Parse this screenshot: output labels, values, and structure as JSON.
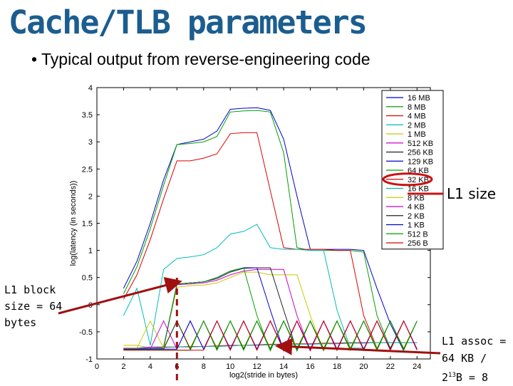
{
  "title": "Cache/TLB parameters",
  "subtitle": "• Typical output from reverse-engineering code",
  "annotations": {
    "l1_size": "L1 size",
    "l1_block_1": "L1 block",
    "l1_block_2": "size = 64",
    "l1_block_3": "bytes",
    "l1_assoc_1": "L1 assoc =",
    "l1_assoc_2": "64 KB /",
    "l1_assoc_3a": "2",
    "l1_assoc_3b": "13",
    "l1_assoc_3c": "B = 8"
  },
  "colors": {
    "title": "#1c5d8f",
    "arrow": "#a01010",
    "highlight": "#cc1111"
  },
  "chart_data": {
    "type": "line",
    "xlabel": "log2(stride in bytes)",
    "ylabel": "log(latency (in seconds))",
    "xlim": [
      0,
      25
    ],
    "ylim": [
      -1,
      4
    ],
    "xticks": [
      0,
      2,
      4,
      6,
      8,
      10,
      12,
      14,
      16,
      18,
      20,
      22,
      24
    ],
    "yticks": [
      -1,
      -0.5,
      0,
      0.5,
      1,
      1.5,
      2,
      2.5,
      3,
      3.5,
      4
    ],
    "legend_position": "top-right",
    "highlighted_legend_entry": "32 KB",
    "series": [
      {
        "name": "16 MB",
        "color": "#0000cc",
        "x": [
          2,
          3,
          4,
          5,
          6,
          7,
          8,
          9,
          10,
          11,
          12,
          13,
          14,
          15,
          16,
          17,
          18,
          19,
          20,
          21,
          22,
          23
        ],
        "values": [
          0.3,
          0.8,
          1.5,
          2.3,
          2.95,
          3.0,
          3.05,
          3.2,
          3.6,
          3.62,
          3.63,
          3.58,
          3.05,
          2.0,
          1.02,
          1.02,
          1.02,
          1.02,
          1.0,
          0.3,
          -0.35,
          -0.85
        ]
      },
      {
        "name": "8 MB",
        "color": "#00a000",
        "x": [
          2,
          3,
          4,
          5,
          6,
          7,
          8,
          9,
          10,
          11,
          12,
          13,
          14,
          15,
          16,
          17,
          18,
          19,
          20,
          21,
          22,
          23
        ],
        "values": [
          0.2,
          0.7,
          1.4,
          2.2,
          2.95,
          2.97,
          3.0,
          3.1,
          3.55,
          3.57,
          3.58,
          3.55,
          2.8,
          1.05,
          1.0,
          1.0,
          1.0,
          1.0,
          0.97,
          -0.2,
          -0.8,
          -0.3
        ]
      },
      {
        "name": "4 MB",
        "color": "#dd0000",
        "x": [
          2,
          3,
          4,
          5,
          6,
          7,
          8,
          9,
          10,
          11,
          12,
          13,
          14,
          15,
          16,
          17,
          18,
          19,
          20,
          21
        ],
        "values": [
          0.1,
          0.55,
          1.2,
          1.95,
          2.65,
          2.65,
          2.7,
          2.78,
          3.15,
          3.17,
          3.17,
          2.1,
          1.05,
          1.02,
          1.02,
          1.02,
          1.0,
          1.0,
          -0.2,
          -0.8
        ]
      },
      {
        "name": "2 MB",
        "color": "#00bbbb",
        "x": [
          2,
          3,
          4,
          5,
          6,
          7,
          8,
          9,
          10,
          11,
          12,
          13,
          14,
          15,
          16,
          17,
          18,
          19,
          20
        ],
        "values": [
          -0.2,
          0.3,
          -0.75,
          0.65,
          0.85,
          0.88,
          0.92,
          1.05,
          1.3,
          1.35,
          1.48,
          1.05,
          1.02,
          1.02,
          1.0,
          1.0,
          -0.1,
          -0.8,
          -0.8
        ]
      },
      {
        "name": "1 MB",
        "color": "#c8c800",
        "x": [
          2,
          3,
          4,
          5,
          6,
          7,
          8,
          9,
          10,
          11,
          12,
          13,
          14,
          15,
          16,
          17,
          18,
          19
        ],
        "values": [
          -0.75,
          -0.75,
          -0.8,
          -0.78,
          0.32,
          0.35,
          0.36,
          0.4,
          0.5,
          0.6,
          0.6,
          0.55,
          0.55,
          0.55,
          -0.2,
          -0.85,
          -0.3,
          -0.85
        ]
      },
      {
        "name": "512 KB",
        "color": "#cc00cc",
        "x": [
          2,
          3,
          4,
          5,
          6,
          7,
          8,
          9,
          10,
          11,
          12,
          13,
          14,
          15,
          16,
          17,
          18
        ],
        "values": [
          -0.8,
          -0.8,
          -0.78,
          -0.78,
          0.37,
          0.38,
          0.4,
          0.45,
          0.55,
          0.62,
          0.65,
          0.65,
          0.65,
          -0.2,
          -0.85,
          -0.3,
          -0.85
        ]
      },
      {
        "name": "256 KB",
        "color": "#222222",
        "x": [
          2,
          3,
          4,
          5,
          6,
          7,
          8,
          9,
          10,
          11,
          12,
          13,
          14,
          15,
          16,
          17
        ],
        "values": [
          -0.82,
          -0.82,
          -0.8,
          -0.8,
          0.38,
          0.4,
          0.42,
          0.48,
          0.6,
          0.67,
          0.68,
          0.68,
          -0.1,
          -0.85,
          -0.3,
          -0.85
        ]
      },
      {
        "name": "129 KB",
        "color": "#0000cc",
        "x": [
          2,
          3,
          4,
          5,
          6,
          7,
          8,
          9,
          10,
          11,
          12,
          13,
          14,
          15,
          16
        ],
        "values": [
          -0.82,
          -0.82,
          -0.8,
          -0.8,
          0.38,
          0.4,
          0.42,
          0.5,
          0.62,
          0.68,
          0.68,
          -0.1,
          -0.85,
          -0.3,
          -0.85
        ]
      },
      {
        "name": "64 KB",
        "color": "#00a000",
        "x": [
          2,
          3,
          4,
          5,
          6,
          7,
          8,
          9,
          10,
          11,
          12,
          13,
          14,
          15
        ],
        "values": [
          -0.82,
          -0.82,
          -0.8,
          -0.8,
          0.38,
          0.4,
          0.42,
          0.5,
          0.62,
          0.68,
          -0.2,
          -0.85,
          -0.3,
          -0.85
        ]
      },
      {
        "name": "32 KB",
        "color": "#dd0000",
        "x": [
          2,
          3,
          4,
          5,
          6,
          7,
          8,
          9,
          10,
          11,
          12,
          13,
          14,
          15,
          16,
          17,
          18,
          19,
          20,
          21,
          22,
          23,
          24
        ],
        "values": [
          -0.8,
          -0.8,
          -0.8,
          -0.78,
          -0.78,
          -0.77,
          -0.77,
          -0.76,
          -0.75,
          -0.75,
          -0.74,
          -0.73,
          -0.73,
          -0.72,
          -0.72,
          -0.71,
          -0.71,
          -0.7,
          -0.7,
          -0.7,
          -0.7,
          -0.7,
          -0.7
        ]
      },
      {
        "name": "16 KB",
        "color": "#00bbbb",
        "x": [
          2,
          3,
          4,
          5,
          6,
          7,
          8,
          9,
          10,
          11,
          12,
          13,
          14,
          15,
          16,
          17,
          18,
          19,
          20,
          21,
          22,
          23,
          24
        ],
        "values": [
          -0.8,
          -0.8,
          -0.8,
          -0.79,
          -0.78,
          -0.78,
          -0.77,
          -0.77,
          -0.76,
          -0.75,
          -0.75,
          -0.74,
          -0.74,
          -0.73,
          -0.73,
          -0.72,
          -0.72,
          -0.71,
          -0.71,
          -0.7,
          -0.7,
          -0.7,
          -0.7
        ]
      },
      {
        "name": "8 KB",
        "color": "#c8c800",
        "x": [
          2,
          3,
          4,
          5,
          6,
          7,
          8,
          9,
          10,
          11,
          12,
          13,
          14,
          15,
          16,
          17,
          18,
          19,
          20,
          21,
          22,
          23,
          24
        ],
        "values": [
          -0.8,
          -0.8,
          -0.3,
          -0.8,
          -0.3,
          -0.8,
          -0.3,
          -0.8,
          -0.3,
          -0.8,
          -0.3,
          -0.8,
          -0.3,
          -0.8,
          -0.3,
          -0.8,
          -0.3,
          -0.8,
          -0.3,
          -0.8,
          -0.3,
          -0.8,
          -0.3
        ]
      },
      {
        "name": "4 KB",
        "color": "#cc00cc",
        "x": [
          2,
          3,
          4,
          5,
          6,
          7,
          8,
          9,
          10,
          11,
          12,
          13,
          14,
          15,
          16,
          17,
          18,
          19,
          20,
          21,
          22,
          23,
          24
        ],
        "values": [
          -0.82,
          -0.82,
          -0.82,
          -0.3,
          -0.82,
          -0.3,
          -0.82,
          -0.3,
          -0.82,
          -0.3,
          -0.82,
          -0.3,
          -0.82,
          -0.3,
          -0.82,
          -0.3,
          -0.82,
          -0.3,
          -0.82,
          -0.3,
          -0.82,
          -0.3,
          -0.82
        ]
      },
      {
        "name": "2 KB",
        "color": "#222222",
        "x": [
          2,
          3,
          4,
          5,
          6,
          7,
          8,
          9,
          10,
          11,
          12,
          13,
          14,
          15,
          16,
          17,
          18,
          19,
          20,
          21,
          22,
          23,
          24
        ],
        "values": [
          -0.82,
          -0.82,
          -0.82,
          -0.82,
          -0.3,
          -0.82,
          -0.3,
          -0.82,
          -0.3,
          -0.82,
          -0.3,
          -0.82,
          -0.3,
          -0.82,
          -0.3,
          -0.82,
          -0.3,
          -0.82,
          -0.3,
          -0.82,
          -0.3,
          -0.82,
          -0.3
        ]
      },
      {
        "name": "1 KB",
        "color": "#0000cc",
        "x": [
          2,
          3,
          4,
          5,
          6,
          7,
          8,
          9,
          10,
          11,
          12,
          13,
          14,
          15,
          16,
          17,
          18,
          19,
          20,
          21,
          22,
          23,
          24
        ],
        "values": [
          -0.82,
          -0.82,
          -0.82,
          -0.82,
          -0.82,
          -0.3,
          -0.82,
          -0.3,
          -0.82,
          -0.3,
          -0.82,
          -0.3,
          -0.82,
          -0.3,
          -0.82,
          -0.3,
          -0.82,
          -0.3,
          -0.82,
          -0.3,
          -0.82,
          -0.3,
          -0.82
        ]
      },
      {
        "name": "512 B",
        "color": "#00a000",
        "x": [
          2,
          3,
          4,
          5,
          6,
          7,
          8,
          9,
          10,
          11,
          12,
          13,
          14,
          15,
          16,
          17,
          18,
          19,
          20,
          21,
          22,
          23,
          24
        ],
        "values": [
          -0.84,
          -0.84,
          -0.84,
          -0.84,
          -0.84,
          -0.84,
          -0.3,
          -0.84,
          -0.3,
          -0.84,
          -0.3,
          -0.84,
          -0.3,
          -0.84,
          -0.3,
          -0.84,
          -0.3,
          -0.84,
          -0.3,
          -0.84,
          -0.3,
          -0.84,
          -0.3
        ]
      },
      {
        "name": "256 B",
        "color": "#dd0000",
        "x": [
          2,
          3,
          4,
          5,
          6,
          7,
          8,
          9,
          10,
          11,
          12,
          13,
          14,
          15,
          16,
          17,
          18,
          19,
          20,
          21,
          22,
          23,
          24
        ],
        "values": [
          -0.84,
          -0.84,
          -0.84,
          -0.84,
          -0.84,
          -0.84,
          -0.84,
          -0.3,
          -0.84,
          -0.3,
          -0.84,
          -0.3,
          -0.84,
          -0.3,
          -0.84,
          -0.3,
          -0.84,
          -0.3,
          -0.84,
          -0.3,
          -0.84,
          -0.3,
          -0.84
        ]
      }
    ]
  }
}
